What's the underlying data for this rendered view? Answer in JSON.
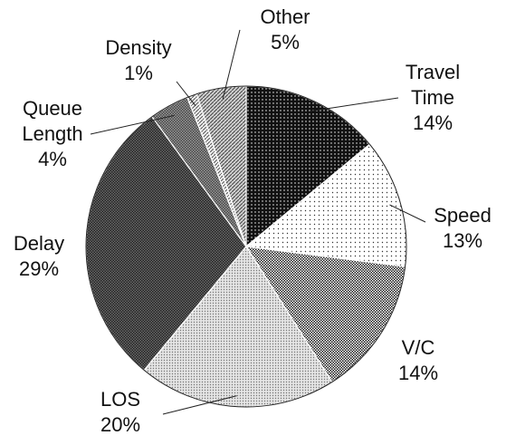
{
  "chart_data": {
    "type": "pie",
    "categories": [
      "Travel Time",
      "Speed",
      "V/C",
      "LOS",
      "Delay",
      "Queue Length",
      "Density",
      "Other"
    ],
    "values": [
      14,
      13,
      14,
      20,
      29,
      4,
      1,
      5
    ],
    "value_labels": [
      "14%",
      "13%",
      "14%",
      "20%",
      "29%",
      "4%",
      "1%",
      "5%"
    ],
    "colors": [
      "#111111",
      "#ffffff",
      "#1a1a1a",
      "#e4e4e4",
      "#6a6a6a",
      "#9a9a9a",
      "#f2f2f2",
      "#d0d0d0"
    ]
  }
}
